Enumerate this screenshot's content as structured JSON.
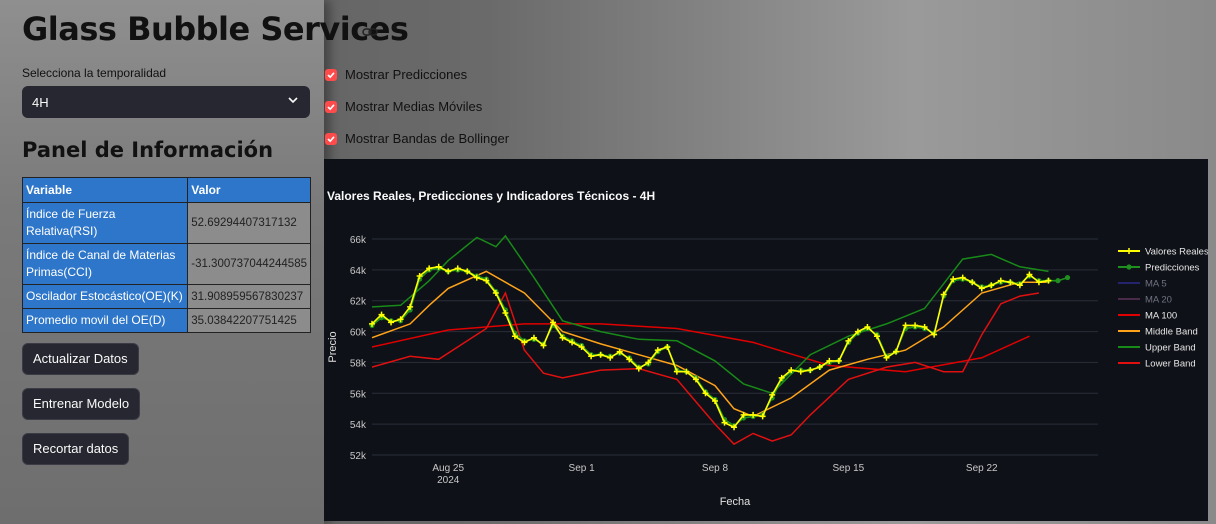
{
  "app": {
    "title": "Glass Bubble Services"
  },
  "timeframe": {
    "label": "Selecciona la temporalidad",
    "value": "4H"
  },
  "panel": {
    "title": "Panel de Información",
    "headers": [
      "Variable",
      "Valor"
    ],
    "rows": [
      {
        "variable": "Índice de Fuerza Relativa(RSI)",
        "value": "52.69294407317132"
      },
      {
        "variable": "Índice de Canal de Materias Primas(CCI)",
        "value": "-31.300737044244585"
      },
      {
        "variable": "Oscilador Estocástico(OE)(K)",
        "value": "31.908959567830237"
      },
      {
        "variable": "Promedio movil del OE(D)",
        "value": "35.03842207751425"
      }
    ]
  },
  "buttons": {
    "update": "Actualizar Datos",
    "train": "Entrenar Modelo",
    "trim": "Recortar datos"
  },
  "options": {
    "predictions": "Mostrar Predicciones",
    "moving_averages": "Mostrar Medias Móviles",
    "bollinger": "Mostrar Bandas de Bollinger",
    "accent": "#ff4b4b"
  },
  "chart_data": {
    "type": "line",
    "title": "Valores Reales, Predicciones y Indicadores Técnicos - 4H",
    "xlabel": "Fecha",
    "ylabel": "Precio",
    "x_ticks": [
      {
        "label": "Aug 25",
        "sub": "2024"
      },
      {
        "label": "Sep 1",
        "sub": ""
      },
      {
        "label": "Sep 8",
        "sub": ""
      },
      {
        "label": "Sep 15",
        "sub": ""
      },
      {
        "label": "Sep 22",
        "sub": ""
      }
    ],
    "y_ticks": [
      "52k",
      "54k",
      "56k",
      "58k",
      "60k",
      "62k",
      "64k",
      "66k"
    ],
    "ylim": [
      52000,
      66000
    ],
    "x_unit": "days since Aug 21",
    "grid": true,
    "legend_position": "right",
    "series": [
      {
        "name": "Valores Reales",
        "color": "#ffff00",
        "marker": "plus",
        "x": [
          0,
          0.5,
          1,
          1.5,
          2,
          2.5,
          3,
          3.5,
          4,
          4.5,
          5,
          5.5,
          6,
          6.5,
          7,
          7.5,
          8,
          8.5,
          9,
          9.5,
          10,
          10.5,
          11,
          11.5,
          12,
          12.5,
          13,
          13.5,
          14,
          14.5,
          15,
          15.5,
          16,
          16.5,
          17,
          17.5,
          18,
          18.5,
          19,
          19.5,
          20,
          20.5,
          21,
          21.5,
          22,
          22.5,
          23,
          23.5,
          24,
          24.5,
          25,
          25.5,
          26,
          26.5,
          27,
          27.5,
          28,
          28.5,
          29,
          29.5,
          30,
          30.5,
          31,
          31.5,
          32,
          32.5,
          33,
          33.5,
          34,
          34.5,
          35,
          35.5
        ],
        "values": [
          60500,
          61100,
          60600,
          60800,
          61600,
          63600,
          64100,
          64200,
          63900,
          64100,
          63900,
          63500,
          63300,
          62500,
          61200,
          59700,
          59300,
          59600,
          59100,
          60600,
          59600,
          59300,
          59000,
          58400,
          58500,
          58300,
          58700,
          58200,
          57600,
          58000,
          58800,
          59000,
          57400,
          57400,
          56900,
          56000,
          55500,
          54100,
          53800,
          54600,
          54600,
          54500,
          55900,
          57000,
          57500,
          57400,
          57500,
          57700,
          58100,
          58100,
          59400,
          60000,
          60300,
          59700,
          58300,
          58700,
          60400,
          60400,
          60300,
          59800,
          62400,
          63400,
          63500,
          63200,
          62800,
          63000,
          63300,
          63200,
          63000,
          63700,
          63200,
          63300
        ]
      },
      {
        "name": "Predicciones",
        "color": "#1f8f1f",
        "marker": "dot",
        "x": [
          0,
          0.5,
          1,
          1.5,
          2,
          2.5,
          3,
          3.5,
          4,
          4.5,
          5,
          5.5,
          6,
          6.5,
          7,
          7.5,
          8,
          8.5,
          9,
          9.5,
          10,
          10.5,
          11,
          11.5,
          12,
          12.5,
          13,
          13.5,
          14,
          14.5,
          15,
          15.5,
          16,
          16.5,
          17,
          17.5,
          18,
          18.5,
          19,
          19.5,
          20,
          20.5,
          21,
          21.5,
          22,
          22.5,
          23,
          23.5,
          24,
          24.5,
          25,
          25.5,
          26,
          26.5,
          27,
          27.5,
          28,
          28.5,
          29,
          29.5,
          30,
          30.5,
          31,
          31.5,
          32,
          32.5,
          33,
          33.5,
          34,
          34.5,
          35,
          35.5,
          36,
          36.5
        ],
        "values": [
          60400,
          60900,
          60700,
          60700,
          61400,
          63400,
          64000,
          64100,
          63900,
          64000,
          63900,
          63600,
          63400,
          62600,
          61400,
          59900,
          59400,
          59500,
          59200,
          60400,
          59700,
          59400,
          59100,
          58500,
          58500,
          58400,
          58600,
          58300,
          57700,
          57900,
          58700,
          59000,
          57500,
          57400,
          57000,
          56100,
          55600,
          54300,
          53900,
          54400,
          54500,
          54600,
          55700,
          56900,
          57400,
          57500,
          57500,
          57700,
          58000,
          58100,
          59300,
          59900,
          60200,
          59800,
          58400,
          58700,
          60200,
          60300,
          60200,
          59900,
          62300,
          63300,
          63400,
          63200,
          62900,
          63000,
          63200,
          63200,
          63100,
          63600,
          63300,
          63300,
          63300,
          63500
        ]
      },
      {
        "name": "MA 5",
        "color": "#23236e",
        "marker": "none",
        "x": [],
        "values": []
      },
      {
        "name": "MA 20",
        "color": "#4a2a4a",
        "marker": "none",
        "x": [],
        "values": []
      },
      {
        "name": "MA 100",
        "color": "#e00000",
        "marker": "none",
        "x": [
          0,
          4,
          8,
          12,
          16,
          20,
          24,
          28,
          32,
          34.5
        ],
        "values": [
          59000,
          60100,
          60500,
          60500,
          60200,
          59300,
          57800,
          57400,
          58300,
          59700
        ]
      },
      {
        "name": "Middle Band",
        "color": "#ffa31a",
        "marker": "none",
        "x": [
          0,
          2,
          3,
          4,
          6,
          8,
          10,
          12,
          14,
          16,
          18,
          19,
          20,
          22,
          24,
          26,
          28,
          30,
          32,
          34,
          35.5
        ],
        "values": [
          59600,
          60500,
          61700,
          62800,
          63900,
          62500,
          60000,
          59200,
          58500,
          57800,
          56500,
          55000,
          54500,
          55700,
          57500,
          58200,
          58800,
          60300,
          62500,
          63200,
          63200
        ]
      },
      {
        "name": "Upper Band",
        "color": "#188a18",
        "marker": "none",
        "x": [
          0,
          1.5,
          3,
          4,
          5.5,
          6.5,
          7,
          8.5,
          10,
          12,
          14,
          16,
          18,
          19.5,
          21,
          23,
          25,
          27,
          29,
          31,
          32.5,
          34,
          35.5
        ],
        "values": [
          61600,
          61700,
          63300,
          64600,
          66100,
          65500,
          66200,
          63500,
          60700,
          60000,
          59500,
          59400,
          58100,
          56600,
          56000,
          58500,
          59700,
          60500,
          61500,
          64700,
          65000,
          64200,
          63900
        ]
      },
      {
        "name": "Lower Band",
        "color": "#e01010",
        "marker": "none",
        "x": [
          0,
          2,
          3.5,
          5,
          6,
          7,
          8,
          9,
          10,
          12,
          14,
          16,
          18,
          19,
          20,
          21,
          22,
          23,
          25,
          27,
          28.5,
          30,
          31,
          32,
          33,
          34,
          35
        ],
        "values": [
          57700,
          58400,
          58200,
          59400,
          60200,
          62500,
          58800,
          57300,
          57000,
          57500,
          57600,
          56900,
          54000,
          52700,
          53400,
          52900,
          53300,
          54600,
          56900,
          57700,
          58000,
          57400,
          57400,
          59800,
          61800,
          62300,
          62500
        ]
      }
    ]
  }
}
